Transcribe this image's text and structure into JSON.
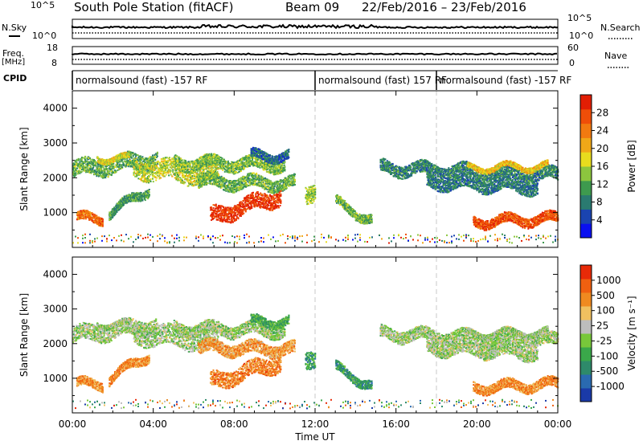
{
  "header": {
    "station": "South Pole Station (fitACF)",
    "beam": "Beam 09",
    "date_range": "22/Feb/2016 – 23/Feb/2016"
  },
  "strip": {
    "nsky_label": "N.Sky",
    "nsky_ticks": [
      "10^5",
      "10^0"
    ],
    "nsearch_label": "N.Search",
    "nsearch_ticks": [
      "10^5",
      "10^0"
    ],
    "freq_label": "Freq.",
    "freq_unit": "[MHz]",
    "freq_ticks": [
      "18",
      "8"
    ],
    "nave_label": "Nave",
    "nave_ticks": [
      "60",
      "0"
    ],
    "cpid_label": "CPID",
    "cpid_segments": [
      {
        "label": "normalsound (fast) -157 RF",
        "start_h": 0,
        "end_h": 12
      },
      {
        "label": "normalsound (fast) 157 RF",
        "start_h": 12,
        "end_h": 18
      },
      {
        "label": "normalsound (fast) -157 RF",
        "start_h": 18,
        "end_h": 24
      }
    ]
  },
  "axes": {
    "xlabel": "Time UT",
    "ylabel": "Slant Range [km]",
    "x_ticks": [
      "00:00",
      "04:00",
      "08:00",
      "12:00",
      "16:00",
      "20:00",
      "00:00"
    ],
    "y_ticks": [
      "1000",
      "2000",
      "3000",
      "4000"
    ]
  },
  "power_scale": {
    "label": "Power [dB]",
    "ticks": [
      "4",
      "8",
      "12",
      "16",
      "20",
      "24",
      "28"
    ],
    "colors": [
      "#0a10f0",
      "#1a44b0",
      "#2a7a70",
      "#3e9a4e",
      "#8cc63e",
      "#e8dc1e",
      "#f0a818",
      "#f27a10",
      "#ef4e08",
      "#e21e04"
    ]
  },
  "velocity_scale": {
    "label": "Velocity [m s⁻¹]",
    "ticks": [
      "1000",
      "500",
      "100",
      "25",
      "-25",
      "-100",
      "-500",
      "-1000"
    ],
    "colors": [
      "#1a3aa8",
      "#2a6ab0",
      "#2e8a6a",
      "#3aa84a",
      "#78c83a",
      "#bdbdbd",
      "#f0c060",
      "#f08a20",
      "#f06010",
      "#e82a08"
    ]
  },
  "chart_data": [
    {
      "type": "heatmap",
      "panel": "power",
      "xlabel": "Time UT",
      "ylabel": "Slant Range [km]",
      "xlim": [
        0,
        24
      ],
      "ylim": [
        0,
        4500
      ],
      "colorbar_label": "Power [dB]",
      "colorbar_range_db": [
        0,
        30
      ],
      "regions": [
        {
          "t": [
            0.0,
            4.2
          ],
          "r_center": [
            2250,
            2550
          ],
          "r_width": 450,
          "level": 0.38
        },
        {
          "t": [
            1.2,
            2.8
          ],
          "r_center": [
            2600,
            2550
          ],
          "r_width": 150,
          "level": 0.55
        },
        {
          "t": [
            3.0,
            7.2
          ],
          "r_center": [
            2300,
            2100
          ],
          "r_width": 550,
          "level": 0.5
        },
        {
          "t": [
            5.0,
            10.5
          ],
          "r_center": [
            2450,
            2400
          ],
          "r_width": 350,
          "level": 0.42
        },
        {
          "t": [
            8.8,
            10.7
          ],
          "r_center": [
            2650,
            2650
          ],
          "r_width": 250,
          "level": 0.22
        },
        {
          "t": [
            6.2,
            11.0
          ],
          "r_center": [
            1900,
            1850
          ],
          "r_width": 350,
          "level": 0.4
        },
        {
          "t": [
            6.8,
            10.3
          ],
          "r_center": [
            900,
            1500
          ],
          "r_width": 450,
          "level": 0.92
        },
        {
          "t": [
            0.2,
            1.5
          ],
          "r_center": [
            850,
            850
          ],
          "r_width": 250,
          "level": 0.8
        },
        {
          "t": [
            1.8,
            3.8
          ],
          "r_center": [
            1000,
            1700
          ],
          "r_width": 250,
          "level": 0.35
        },
        {
          "t": [
            11.5,
            12.0
          ],
          "r_center": [
            1500,
            1700
          ],
          "r_width": 500,
          "level": 0.45
        },
        {
          "t": [
            13.0,
            14.8
          ],
          "r_center": [
            1300,
            800
          ],
          "r_width": 250,
          "level": 0.4
        },
        {
          "t": [
            15.2,
            24.0
          ],
          "r_center": [
            2300,
            2100
          ],
          "r_width": 350,
          "level": 0.28
        },
        {
          "t": [
            17.5,
            23.0
          ],
          "r_center": [
            1900,
            1750
          ],
          "r_width": 350,
          "level": 0.26
        },
        {
          "t": [
            19.8,
            24.0
          ],
          "r_center": [
            750,
            850
          ],
          "r_width": 280,
          "level": 0.86
        },
        {
          "t": [
            19.5,
            23.5
          ],
          "r_center": [
            2300,
            2350
          ],
          "r_width": 150,
          "level": 0.6
        }
      ]
    },
    {
      "type": "heatmap",
      "panel": "velocity",
      "xlabel": "Time UT",
      "ylabel": "Slant Range [km]",
      "xlim": [
        0,
        24
      ],
      "ylim": [
        0,
        4500
      ],
      "colorbar_label": "Velocity [m s⁻¹]",
      "colorbar_range_ms": [
        -1000,
        1000
      ],
      "regions": [
        {
          "t": [
            0.0,
            4.2
          ],
          "r_center": [
            2250,
            2550
          ],
          "r_width": 450,
          "level": 0.5
        },
        {
          "t": [
            1.2,
            2.8
          ],
          "r_center": [
            2600,
            2550
          ],
          "r_width": 150,
          "level": 0.5
        },
        {
          "t": [
            3.0,
            7.2
          ],
          "r_center": [
            2300,
            2100
          ],
          "r_width": 550,
          "level": 0.5
        },
        {
          "t": [
            5.0,
            10.5
          ],
          "r_center": [
            2450,
            2400
          ],
          "r_width": 350,
          "level": 0.5
        },
        {
          "t": [
            8.8,
            10.7
          ],
          "r_center": [
            2650,
            2650
          ],
          "r_width": 250,
          "level": 0.35
        },
        {
          "t": [
            6.2,
            11.0
          ],
          "r_center": [
            1900,
            1850
          ],
          "r_width": 350,
          "level": 0.72
        },
        {
          "t": [
            6.8,
            10.3
          ],
          "r_center": [
            900,
            1500
          ],
          "r_width": 450,
          "level": 0.78
        },
        {
          "t": [
            0.2,
            1.5
          ],
          "r_center": [
            850,
            850
          ],
          "r_width": 250,
          "level": 0.76
        },
        {
          "t": [
            1.8,
            3.8
          ],
          "r_center": [
            1000,
            1700
          ],
          "r_width": 250,
          "level": 0.76
        },
        {
          "t": [
            11.5,
            12.0
          ],
          "r_center": [
            1500,
            1700
          ],
          "r_width": 500,
          "level": 0.3
        },
        {
          "t": [
            13.0,
            14.8
          ],
          "r_center": [
            1300,
            800
          ],
          "r_width": 250,
          "level": 0.3
        },
        {
          "t": [
            15.2,
            24.0
          ],
          "r_center": [
            2300,
            2100
          ],
          "r_width": 350,
          "level": 0.5
        },
        {
          "t": [
            17.5,
            23.0
          ],
          "r_center": [
            1900,
            1750
          ],
          "r_width": 350,
          "level": 0.5
        },
        {
          "t": [
            19.8,
            24.0
          ],
          "r_center": [
            750,
            850
          ],
          "r_width": 280,
          "level": 0.76
        },
        {
          "t": [
            19.5,
            23.5
          ],
          "r_center": [
            2300,
            2350
          ],
          "r_width": 150,
          "level": 0.5
        }
      ]
    }
  ]
}
